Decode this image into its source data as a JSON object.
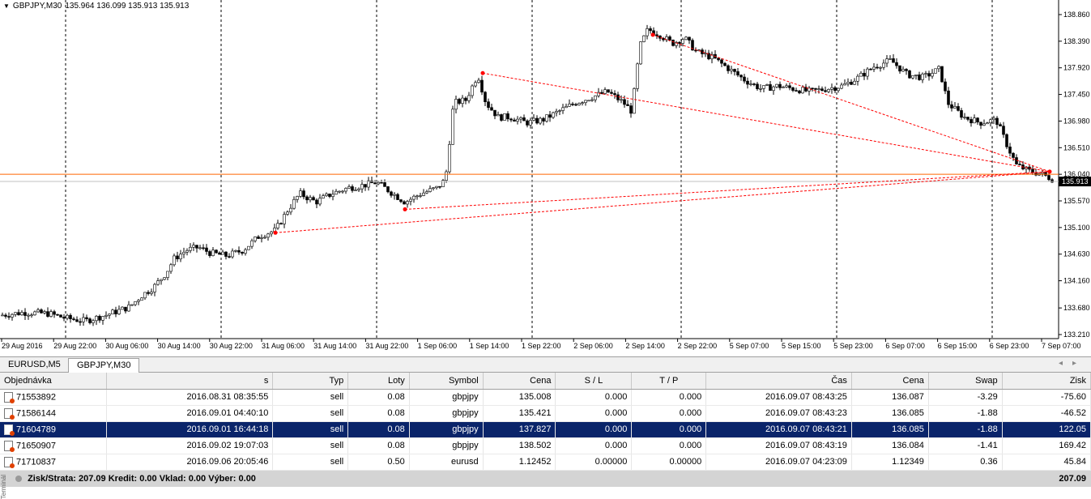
{
  "chart": {
    "symbol_label": "GBPJPY,M30",
    "ohlc_label": "135.964 136.099 135.913 135.913",
    "current_price": "135.913",
    "bid_line_label": "136.040",
    "price_ticks": [
      "138.860",
      "138.390",
      "137.920",
      "137.450",
      "136.980",
      "136.510",
      "136.040",
      "135.570",
      "135.100",
      "134.630",
      "134.160",
      "133.680",
      "133.210"
    ],
    "time_ticks": [
      "29 Aug 2016",
      "29 Aug 22:00",
      "30 Aug 06:00",
      "30 Aug 14:00",
      "30 Aug 22:00",
      "31 Aug 06:00",
      "31 Aug 14:00",
      "31 Aug 22:00",
      "1 Sep 06:00",
      "1 Sep 14:00",
      "1 Sep 22:00",
      "2 Sep 06:00",
      "2 Sep 14:00",
      "2 Sep 22:00",
      "5 Sep 07:00",
      "5 Sep 15:00",
      "5 Sep 23:00",
      "6 Sep 07:00",
      "6 Sep 15:00",
      "6 Sep 23:00",
      "7 Sep 07:00"
    ],
    "colors": {
      "bid_line": "#ff6600",
      "trade_line": "#ff0000",
      "candle": "#000000"
    }
  },
  "tabs": [
    {
      "label": "EURUSD,M5",
      "active": false
    },
    {
      "label": "GBPJPY,M30",
      "active": true
    }
  ],
  "terminal": {
    "columns": [
      "Objednávka",
      "s",
      "Typ",
      "Loty",
      "Symbol",
      "Cena",
      "S / L",
      "T / P",
      "Čas",
      "Cena",
      "Swap",
      "Zisk"
    ],
    "rows": [
      {
        "order": "71553892",
        "open_time": "2016.08.31 08:35:55",
        "type": "sell",
        "lots": "0.08",
        "symbol": "gbpjpy",
        "open_price": "135.008",
        "sl": "0.000",
        "tp": "0.000",
        "close_time": "2016.09.07 08:43:25",
        "price": "136.087",
        "swap": "-3.29",
        "profit": "-75.60",
        "selected": false
      },
      {
        "order": "71586144",
        "open_time": "2016.09.01 04:40:10",
        "type": "sell",
        "lots": "0.08",
        "symbol": "gbpjpy",
        "open_price": "135.421",
        "sl": "0.000",
        "tp": "0.000",
        "close_time": "2016.09.07 08:43:23",
        "price": "136.085",
        "swap": "-1.88",
        "profit": "-46.52",
        "selected": false
      },
      {
        "order": "71604789",
        "open_time": "2016.09.01 16:44:18",
        "type": "sell",
        "lots": "0.08",
        "symbol": "gbpjpy",
        "open_price": "137.827",
        "sl": "0.000",
        "tp": "0.000",
        "close_time": "2016.09.07 08:43:21",
        "price": "136.085",
        "swap": "-1.88",
        "profit": "122.05",
        "selected": true
      },
      {
        "order": "71650907",
        "open_time": "2016.09.02 19:07:03",
        "type": "sell",
        "lots": "0.08",
        "symbol": "gbpjpy",
        "open_price": "138.502",
        "sl": "0.000",
        "tp": "0.000",
        "close_time": "2016.09.07 08:43:19",
        "price": "136.084",
        "swap": "-1.41",
        "profit": "169.42",
        "selected": false
      },
      {
        "order": "71710837",
        "open_time": "2016.09.06 20:05:46",
        "type": "sell",
        "lots": "0.50",
        "symbol": "eurusd",
        "open_price": "1.12452",
        "sl": "0.00000",
        "tp": "0.00000",
        "close_time": "2016.09.07 04:23:09",
        "price": "1.12349",
        "swap": "0.36",
        "profit": "45.84",
        "selected": false
      }
    ],
    "summary": {
      "text": "Zisk/Strata: 207.09  Kredit: 0.00  Vklad: 0.00  Výber: 0.00",
      "total": "207.09"
    },
    "side_label": "Terminál"
  }
}
